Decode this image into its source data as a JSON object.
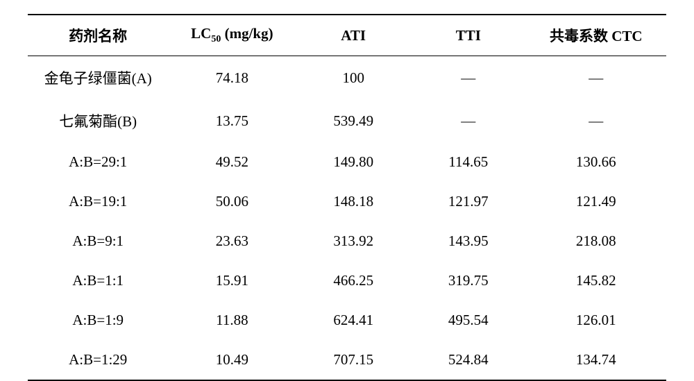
{
  "table": {
    "columns": [
      "药剂名称",
      "LC50 (mg/kg)",
      "ATI",
      "TTI",
      "共毒系数 CTC"
    ],
    "header_fontsize": 21,
    "cell_fontsize": 21,
    "border_color": "#000000",
    "background_color": "#ffffff",
    "text_color": "#000000",
    "top_border_width": 2,
    "header_border_width": 1.5,
    "bottom_border_width": 2,
    "rows": [
      {
        "name": "金龟子绿僵菌(A)",
        "lc50": "74.18",
        "ati": "100",
        "tti": "—",
        "ctc": "—"
      },
      {
        "name": "七氟菊酯(B)",
        "lc50": "13.75",
        "ati": "539.49",
        "tti": "—",
        "ctc": "—"
      },
      {
        "name": "A:B=29:1",
        "lc50": "49.52",
        "ati": "149.80",
        "tti": "114.65",
        "ctc": "130.66"
      },
      {
        "name": "A:B=19:1",
        "lc50": "50.06",
        "ati": "148.18",
        "tti": "121.97",
        "ctc": "121.49"
      },
      {
        "name": "A:B=9:1",
        "lc50": "23.63",
        "ati": "313.92",
        "tti": "143.95",
        "ctc": "218.08"
      },
      {
        "name": "A:B=1:1",
        "lc50": "15.91",
        "ati": "466.25",
        "tti": "319.75",
        "ctc": "145.82"
      },
      {
        "name": "A:B=1:9",
        "lc50": "11.88",
        "ati": "624.41",
        "tti": "495.54",
        "ctc": "126.01"
      },
      {
        "name": "A:B=1:29",
        "lc50": "10.49",
        "ati": "707.15",
        "tti": "524.84",
        "ctc": "134.74"
      }
    ]
  }
}
